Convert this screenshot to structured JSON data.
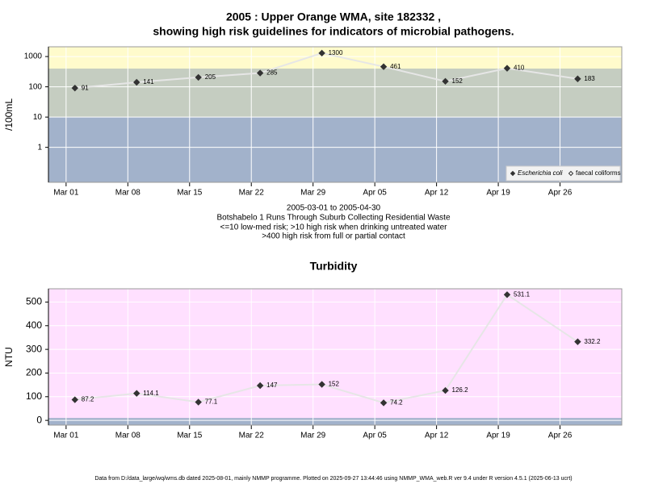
{
  "title_lines": [
    "2005 : Upper Orange WMA, site 182332 ,",
    "showing high risk guidelines for indicators of microbial pathogens."
  ],
  "footer": "Data from D:/data_large/wq/wms.db dated 2025-08-01, mainly NMMP programme. Plotted on 2025-09-27 13:44:46 using NMMP_WMA_web.R ver 9.4 under R version 4.5.1 (2025-06-13 ucrt)",
  "chart_data": [
    {
      "type": "line",
      "ylabel": "/100mL",
      "log_y": true,
      "grid": true,
      "background": "#fffbcc",
      "bands": [
        {
          "from": 0.07,
          "to": 10,
          "color": "#a2b2cb"
        },
        {
          "from": 10,
          "to": 400,
          "color": "#c5cdc1"
        }
      ],
      "notes": [
        "2005-03-01 to 2005-04-30",
        "Botshabelo 1 Runs Through Suburb Collecting Residential Waste",
        "<=10 low-med risk; >10 high risk when drinking untreated water",
        ">400 high risk from full or partial contact"
      ],
      "legend": "bottom-right",
      "x": [
        "2005-03-02",
        "2005-03-09",
        "2005-03-16",
        "2005-03-23",
        "2005-03-30",
        "2005-04-06",
        "2005-04-13",
        "2005-04-20",
        "2005-04-28"
      ],
      "xlim": [
        "2005-02-27",
        "2005-05-03"
      ],
      "xticks": [
        {
          "value": "2005-03-01",
          "label": "Mar 01"
        },
        {
          "value": "2005-03-08",
          "label": "Mar 08"
        },
        {
          "value": "2005-03-15",
          "label": "Mar 15"
        },
        {
          "value": "2005-03-22",
          "label": "Mar 22"
        },
        {
          "value": "2005-03-29",
          "label": "Mar 29"
        },
        {
          "value": "2005-04-05",
          "label": "Apr 05"
        },
        {
          "value": "2005-04-12",
          "label": "Apr 12"
        },
        {
          "value": "2005-04-19",
          "label": "Apr 19"
        },
        {
          "value": "2005-04-26",
          "label": "Apr 26"
        }
      ],
      "ylim": [
        0.07,
        2100
      ],
      "yticks": [
        1,
        10,
        100,
        1000
      ],
      "series": [
        {
          "name": "Escherichia coli",
          "color": "#333333",
          "marker": "filled",
          "values": [
            91,
            141,
            205,
            285,
            1300,
            461,
            152,
            410,
            183
          ]
        },
        {
          "name": "faecal coliforms",
          "color": "#333333",
          "marker": "open",
          "values": [
            null,
            null,
            null,
            null,
            null,
            null,
            null,
            null,
            null
          ]
        }
      ]
    },
    {
      "type": "line",
      "title": "Turbidity",
      "ylabel": "NTU",
      "log_y": false,
      "grid": true,
      "background": "#ffe0ff",
      "bands": [
        {
          "from": -20,
          "to": 10,
          "color": "#a2b2cb"
        }
      ],
      "x": [
        "2005-03-02",
        "2005-03-09",
        "2005-03-16",
        "2005-03-23",
        "2005-03-30",
        "2005-04-06",
        "2005-04-13",
        "2005-04-20",
        "2005-04-28"
      ],
      "xlim": [
        "2005-02-27",
        "2005-05-03"
      ],
      "xticks": [
        {
          "value": "2005-03-01",
          "label": "Mar 01"
        },
        {
          "value": "2005-03-08",
          "label": "Mar 08"
        },
        {
          "value": "2005-03-15",
          "label": "Mar 15"
        },
        {
          "value": "2005-03-22",
          "label": "Mar 22"
        },
        {
          "value": "2005-03-29",
          "label": "Mar 29"
        },
        {
          "value": "2005-04-05",
          "label": "Apr 05"
        },
        {
          "value": "2005-04-12",
          "label": "Apr 12"
        },
        {
          "value": "2005-04-19",
          "label": "Apr 19"
        },
        {
          "value": "2005-04-26",
          "label": "Apr 26"
        }
      ],
      "ylim": [
        -20,
        556
      ],
      "yticks": [
        0,
        100,
        200,
        300,
        400,
        500
      ],
      "series": [
        {
          "name": "Turbidity",
          "color": "#333333",
          "marker": "filled",
          "values": [
            87.2,
            114.1,
            77.1,
            147,
            152,
            74.2,
            126.2,
            531.1,
            332.2
          ]
        }
      ]
    }
  ]
}
